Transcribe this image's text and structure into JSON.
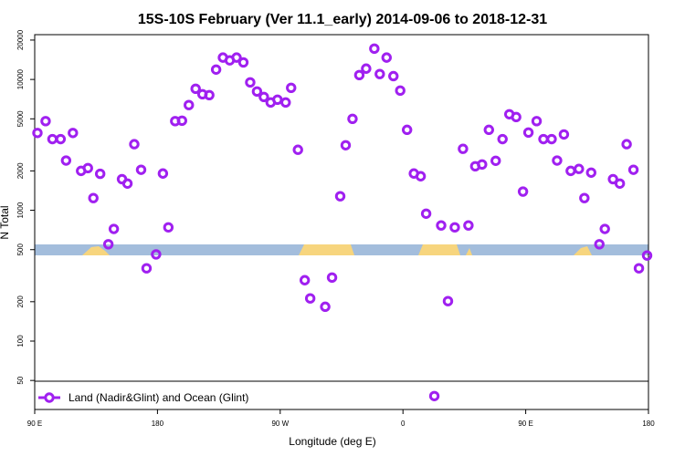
{
  "chart_data": {
    "type": "scatter",
    "title": "15S-10S February (Ver 11.1_early)   2014-09-06 to 2018-12-31",
    "x_label": "Longitude (deg E)",
    "y_label": "N Total",
    "ylog": true,
    "legend": "bottom-left",
    "xlim": [
      90,
      540
    ],
    "xticks": [
      {
        "value": 90,
        "label": "90 E"
      },
      {
        "value": 180,
        "label": "180"
      },
      {
        "value": 270,
        "label": "90 W"
      },
      {
        "value": 360,
        "label": "0"
      },
      {
        "value": 450,
        "label": "90 E"
      },
      {
        "value": 540,
        "label": "180"
      }
    ],
    "ylim": [
      30,
      22000
    ],
    "yticks": [
      50,
      100,
      200,
      500,
      1000,
      2000,
      5000,
      10000,
      20000
    ],
    "series": [
      {
        "name": "Land (Nadir&Glint) and Ocean (Glint)",
        "color": "#a020f0",
        "x": [
          92,
          98,
          103,
          109,
          113,
          118,
          124,
          129,
          133,
          138,
          144,
          148,
          154,
          158,
          163,
          168,
          172,
          179,
          184,
          188,
          193,
          198,
          203,
          208,
          213,
          218,
          223,
          228,
          233,
          238,
          243,
          248,
          253,
          258,
          263,
          268,
          274,
          278,
          283,
          288,
          292,
          303,
          308,
          314,
          318,
          323,
          328,
          333,
          339,
          343,
          348,
          353,
          358,
          363,
          368,
          373,
          377,
          383,
          388,
          393,
          398,
          404,
          408,
          413,
          418,
          423,
          428,
          433,
          438,
          443,
          448,
          452,
          458,
          463,
          469,
          473,
          478,
          483,
          489,
          493,
          498,
          504,
          508,
          514,
          519,
          524,
          529,
          533,
          539
        ],
        "values": [
          3900,
          4800,
          3500,
          3500,
          2400,
          3900,
          2000,
          2100,
          1240,
          1900,
          550,
          720,
          1730,
          1600,
          3200,
          2040,
          360,
          460,
          1910,
          740,
          4800,
          4840,
          6370,
          8490,
          7710,
          7590,
          11900,
          14700,
          14000,
          14700,
          13500,
          9500,
          8090,
          7350,
          6670,
          7000,
          6670,
          8630,
          2900,
          292,
          212,
          183,
          306,
          1280,
          3140,
          5000,
          10800,
          12100,
          17200,
          11000,
          14700,
          10600,
          8220,
          4120,
          1910,
          1820,
          942,
          38,
          766,
          202,
          740,
          2950,
          766,
          2170,
          2240,
          4120,
          2390,
          3500,
          5420,
          5160,
          1390,
          3930,
          4800,
          3500,
          3500,
          2400,
          3800,
          2000,
          2070,
          1240,
          1940,
          550,
          720,
          1730,
          1600,
          3200,
          2040,
          360,
          451
        ]
      }
    ]
  }
}
